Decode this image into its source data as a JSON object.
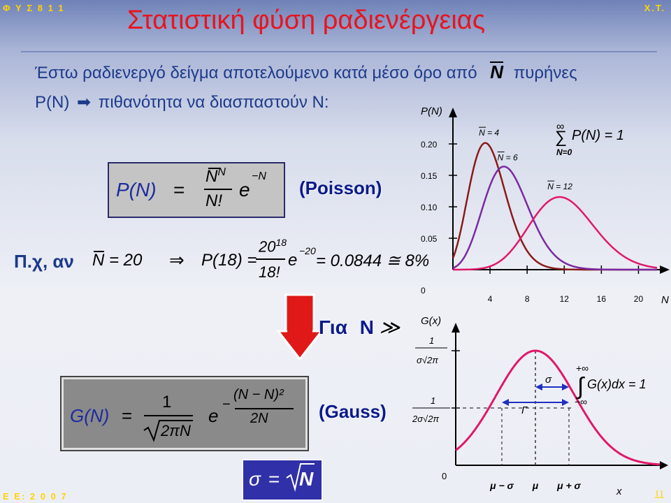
{
  "header": {
    "left_code": "Φ Υ Σ 8 1 1",
    "right_code": "Χ.Τ.",
    "title": "Στατιστική φύση ραδιενέργειας"
  },
  "intro": {
    "line1": "Έστω ραδιενεργό δείγμα αποτελούμενο κατά μέσο όρο από",
    "n_bar": "N",
    "line1_end": "πυρήνες",
    "pn_label": "P(N)",
    "arrow": "➡",
    "line2": "πιθανότητα να διασπαστούν N:"
  },
  "poisson": {
    "lhs": "P(N)",
    "eq": "=",
    "num": "N",
    "num_sup": "N",
    "den": "N!",
    "e": "e",
    "e_sup": "−N",
    "label": "(Poisson)"
  },
  "example": {
    "prefix": "Π.χ, αν",
    "cond": "N = 20",
    "implies": "⇒",
    "lhs": "P(18) =",
    "num": "20",
    "num_sup": "18",
    "den": "18!",
    "e": "e",
    "e_sup": "−20",
    "result": "= 0.0844 ≅ 8%"
  },
  "transition": {
    "label": "Για",
    "n": "N",
    "gg": "≫"
  },
  "gauss": {
    "lhs": "G(N)",
    "eq": "=",
    "num": "1",
    "den": "2πN",
    "e": "e",
    "exp_num": "(N − N)²",
    "exp_den": "2N",
    "minus": "−",
    "label": "(Gauss)"
  },
  "sigma_box": {
    "sigma": "σ",
    "eq": "=",
    "rhs": "N"
  },
  "footer": {
    "left_code": "Ε Ε: 2 0 0 7",
    "page": "11"
  },
  "chart_data": [
    {
      "type": "line",
      "ylabel": "P(N)",
      "xlabel": "N",
      "y_ticks": [
        "0",
        "0.05",
        "0.10",
        "0.15",
        "0.20"
      ],
      "x_ticks": [
        "4",
        "8",
        "12",
        "16",
        "20"
      ],
      "xlim": [
        0,
        22
      ],
      "ylim": [
        0,
        0.22
      ],
      "sum_label": "P(N) = 1",
      "sum_top": "∞",
      "sum_bottom": "N=0",
      "series": [
        {
          "name": "N = 4",
          "mean": 4,
          "color": "#8b1a1a"
        },
        {
          "name": "N = 6",
          "mean": 6,
          "color": "#7a2aa0"
        },
        {
          "name": "N = 12",
          "mean": 12,
          "color": "#e0186a"
        }
      ]
    },
    {
      "type": "line",
      "ylabel": "G(x)",
      "xlabel": "x",
      "y_tick_top": "1",
      "y_tick_top_den": "σ√2π",
      "y_tick_mid": "1",
      "y_tick_mid_den": "2σ√2π",
      "origin": "0",
      "x_marks": [
        "μ − σ",
        "μ",
        "μ + σ"
      ],
      "gamma_label": "Γ",
      "sigma_label": "σ",
      "integral_upper": "+∞",
      "integral_lower": "−∞",
      "integral_body": "G(x)dx = 1",
      "color": "#e0186a"
    }
  ]
}
